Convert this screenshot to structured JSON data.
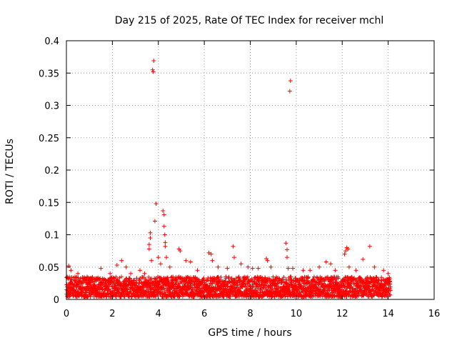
{
  "chart_data": {
    "type": "scatter",
    "title": "Day 215 of 2025, Rate Of TEC Index for receiver mchl",
    "xlabel": "GPS time / hours",
    "ylabel": "ROTI / TECUs",
    "xlim": [
      0,
      16
    ],
    "ylim": [
      0,
      0.4
    ],
    "x_ticks": [
      0,
      2,
      4,
      6,
      8,
      10,
      12,
      14,
      16
    ],
    "x_tick_labels": [
      "0",
      "2",
      "4",
      "6",
      "8",
      "10",
      "12",
      "14",
      "16"
    ],
    "y_ticks": [
      0,
      0.05,
      0.1,
      0.15,
      0.2,
      0.25,
      0.3,
      0.35,
      0.4
    ],
    "y_tick_labels": [
      "0",
      "0.05",
      "0.1",
      "0.15",
      "0.2",
      "0.25",
      "0.3",
      "0.35",
      "0.4"
    ],
    "grid": true,
    "marker": "+",
    "series_color": "#ff0000",
    "baseline": {
      "x_range": [
        0,
        14.1
      ],
      "y_range": [
        0.0,
        0.035
      ],
      "description": "dense band of ROTI values between about 0 and 0.035 TECU/min over 0-14.1 h"
    },
    "series": [
      {
        "name": "ROTI",
        "points": [
          [
            0.1,
            0.052
          ],
          [
            0.2,
            0.045
          ],
          [
            0.5,
            0.04
          ],
          [
            0.9,
            0.035
          ],
          [
            1.5,
            0.048
          ],
          [
            1.9,
            0.04
          ],
          [
            2.2,
            0.053
          ],
          [
            2.4,
            0.06
          ],
          [
            2.6,
            0.05
          ],
          [
            2.8,
            0.04
          ],
          [
            3.2,
            0.045
          ],
          [
            3.4,
            0.04
          ],
          [
            3.6,
            0.085
          ],
          [
            3.6,
            0.078
          ],
          [
            3.65,
            0.095
          ],
          [
            3.65,
            0.103
          ],
          [
            3.7,
            0.06
          ],
          [
            3.75,
            0.355
          ],
          [
            3.78,
            0.352
          ],
          [
            3.8,
            0.369
          ],
          [
            3.85,
            0.121
          ],
          [
            3.9,
            0.148
          ],
          [
            4.0,
            0.065
          ],
          [
            4.1,
            0.055
          ],
          [
            4.2,
            0.137
          ],
          [
            4.25,
            0.131
          ],
          [
            4.25,
            0.113
          ],
          [
            4.28,
            0.1
          ],
          [
            4.3,
            0.088
          ],
          [
            4.3,
            0.082
          ],
          [
            4.35,
            0.065
          ],
          [
            4.5,
            0.05
          ],
          [
            4.9,
            0.078
          ],
          [
            4.95,
            0.075
          ],
          [
            5.2,
            0.06
          ],
          [
            5.4,
            0.058
          ],
          [
            5.7,
            0.045
          ],
          [
            6.2,
            0.072
          ],
          [
            6.3,
            0.07
          ],
          [
            6.35,
            0.06
          ],
          [
            6.6,
            0.05
          ],
          [
            7.0,
            0.048
          ],
          [
            7.25,
            0.082
          ],
          [
            7.3,
            0.065
          ],
          [
            7.6,
            0.055
          ],
          [
            7.9,
            0.05
          ],
          [
            8.1,
            0.048
          ],
          [
            8.35,
            0.048
          ],
          [
            8.7,
            0.063
          ],
          [
            8.75,
            0.06
          ],
          [
            8.9,
            0.05
          ],
          [
            9.55,
            0.087
          ],
          [
            9.6,
            0.077
          ],
          [
            9.6,
            0.065
          ],
          [
            9.65,
            0.048
          ],
          [
            9.75,
            0.338
          ],
          [
            9.72,
            0.322
          ],
          [
            9.85,
            0.048
          ],
          [
            10.3,
            0.045
          ],
          [
            10.6,
            0.045
          ],
          [
            11.0,
            0.05
          ],
          [
            11.3,
            0.058
          ],
          [
            11.5,
            0.055
          ],
          [
            11.7,
            0.045
          ],
          [
            12.1,
            0.07
          ],
          [
            12.15,
            0.075
          ],
          [
            12.2,
            0.08
          ],
          [
            12.25,
            0.078
          ],
          [
            12.3,
            0.05
          ],
          [
            12.6,
            0.045
          ],
          [
            12.9,
            0.062
          ],
          [
            13.2,
            0.082
          ],
          [
            13.4,
            0.05
          ],
          [
            13.8,
            0.045
          ],
          [
            14.0,
            0.04
          ]
        ]
      }
    ]
  }
}
